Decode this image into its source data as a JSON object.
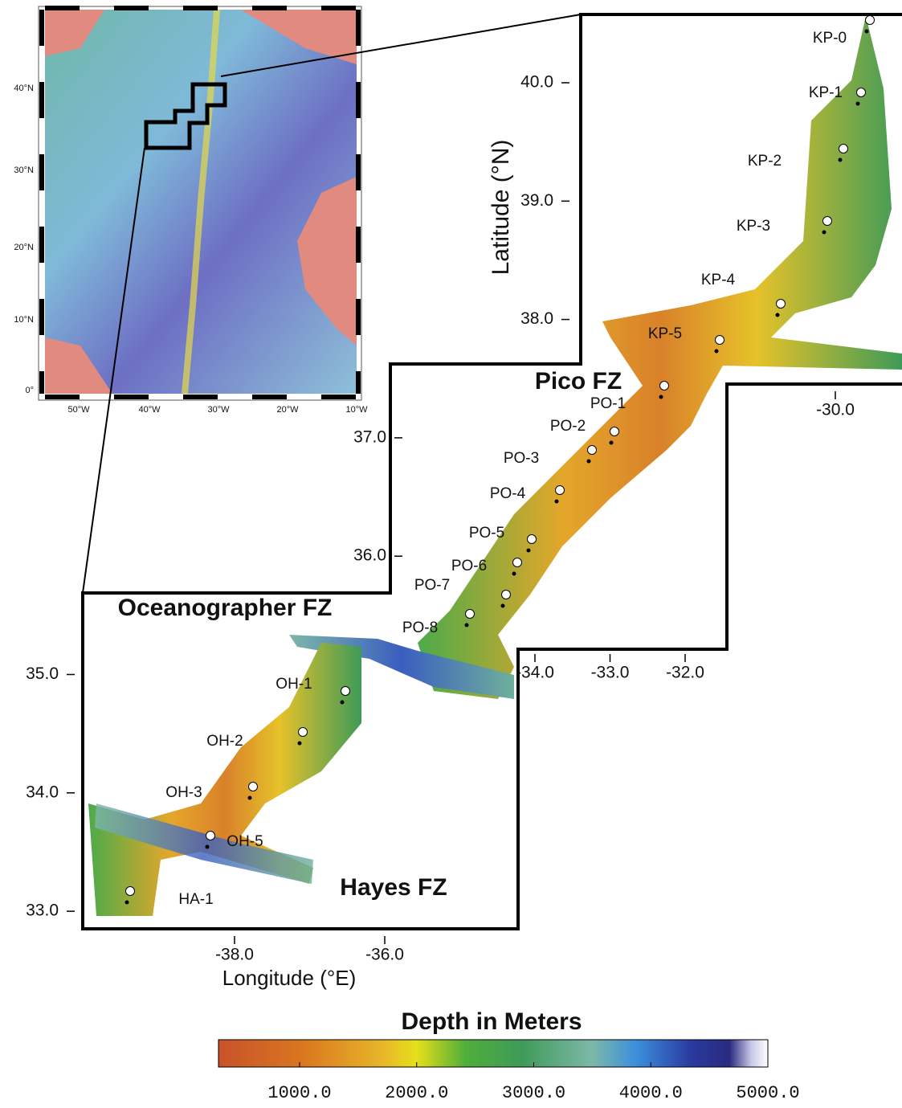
{
  "inset_map": {
    "lat_labels": [
      "40°N",
      "30°N",
      "20°N",
      "10°N",
      "0°"
    ],
    "lon_labels": [
      "50°W",
      "40°W",
      "30°W",
      "20°W",
      "10°W"
    ]
  },
  "main_map": {
    "y_axis_label": "Latitude (°N)",
    "x_axis_label": "Longitude (°E)",
    "lat_ticks": [
      {
        "value": 40,
        "label": "40.0"
      },
      {
        "value": 39,
        "label": "39.0"
      },
      {
        "value": 38,
        "label": "38.0"
      },
      {
        "value": 37,
        "label": "37.0"
      },
      {
        "value": 36,
        "label": "36.0"
      },
      {
        "value": 35,
        "label": "35.0"
      },
      {
        "value": 34,
        "label": "34.0"
      },
      {
        "value": 33,
        "label": "33.0"
      }
    ],
    "lon_ticks": [
      {
        "value": -30,
        "label": "-30.0"
      },
      {
        "value": -32,
        "label": "-32.0"
      },
      {
        "value": -33,
        "label": "-33.0"
      },
      {
        "value": -34,
        "label": "-34.0"
      },
      {
        "value": -36,
        "label": "-36.0"
      },
      {
        "value": -38,
        "label": "-38.0"
      }
    ],
    "fracture_zones": [
      "Pico FZ",
      "Oceanographer FZ",
      "Hayes FZ"
    ],
    "sites": [
      "KP-0",
      "KP-1",
      "KP-2",
      "KP-3",
      "KP-4",
      "KP-5",
      "PO-1",
      "PO-2",
      "PO-3",
      "PO-4",
      "PO-5",
      "PO-6",
      "PO-7",
      "PO-8",
      "OH-1",
      "OH-2",
      "OH-3",
      "OH-5",
      "HA-1"
    ]
  },
  "colorbar": {
    "title": "Depth in Meters",
    "ticks": [
      {
        "value": 1000,
        "label": "1000.0"
      },
      {
        "value": 2000,
        "label": "2000.0"
      },
      {
        "value": 3000,
        "label": "3000.0"
      },
      {
        "value": 4000,
        "label": "4000.0"
      },
      {
        "value": 5000,
        "label": "5000.0"
      }
    ]
  }
}
